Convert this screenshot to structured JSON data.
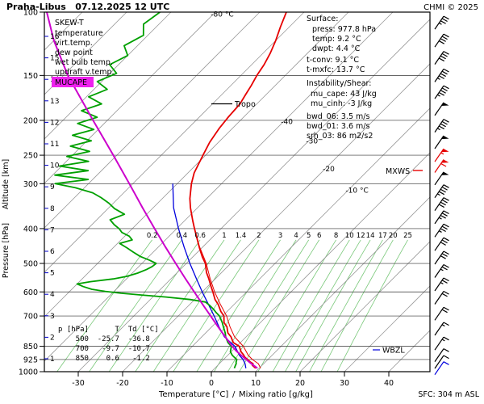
{
  "header": {
    "title": "Praha-Libus   07.12.2025 12 UTC",
    "copyright": "CHMI © 2025",
    "copyright_color": "#dd0000"
  },
  "legend": {
    "title": "SKEW-T",
    "items": [
      {
        "label": "temperature",
        "color": "#e60000"
      },
      {
        "label": "virt.temp.",
        "color": "#e60000"
      },
      {
        "label": "dew point",
        "color": "#00a000"
      },
      {
        "label": "wet bulb temp.",
        "color": "#0000dd"
      },
      {
        "label": "updraft v.temp.",
        "color": "#cc00cc"
      }
    ],
    "mucape": {
      "label": "MUCAPE",
      "bg": "#ee22ee"
    }
  },
  "info": {
    "surface_title": "Surface:",
    "rows": [
      {
        "text": "press: 977.8 hPa",
        "color": "#000000"
      },
      {
        "text": "temp: 9.2 °C",
        "color": "#e60000"
      },
      {
        "text": "dwpt: 4.4 °C",
        "color": "#00a000"
      },
      {
        "text": "t-conv: 9.1 °C",
        "color": "#000000"
      },
      {
        "text": "t-mxfc: 13.7 °C",
        "color": "#000000"
      }
    ],
    "shear_title": "Instability/Shear:",
    "shear_rows": [
      {
        "text": "mu_cape: 43 J/kg"
      },
      {
        "text": "mu_cinh: -3 J/kg"
      },
      {
        "text": "bwd_06: 3.5 m/s"
      },
      {
        "text": "bwd_01: 3.6 m/s"
      },
      {
        "text": "srh_03: 86 m2/s2"
      }
    ]
  },
  "markers": {
    "tropo": "Tropo",
    "mxws": "MXWS",
    "wbzl": "WBZL",
    "sfc": "SFC: 304 m ASL"
  },
  "table": {
    "header": "p [hPa]      T  Td [°C]",
    "rows": [
      "    500  -25.7  -36.8",
      "    700   -9.7  -10.7",
      "    850    0.6   -1.2"
    ]
  },
  "axes": {
    "pressure_ticks": [
      100,
      150,
      200,
      250,
      300,
      400,
      500,
      600,
      700,
      850,
      925,
      1000
    ],
    "altitude_ticks": [
      16,
      15,
      14,
      13,
      12,
      11,
      10,
      9,
      8,
      7,
      6,
      5,
      4,
      3,
      2,
      1
    ],
    "temp_ticks": [
      -30,
      -20,
      -10,
      0,
      10,
      20,
      30,
      40
    ],
    "xlabel_temp": "Temperature [°C]",
    "xlabel_sep": "/",
    "xlabel_mix": "Mixing ratio [g/kg]",
    "ylabel_pressure": "Pressure [hPa]",
    "ylabel_altitude": "Altitude [km]"
  },
  "chart_data": {
    "type": "line",
    "subtype": "skew-t-log-p-sounding",
    "title": "SKEW-T sounding Praha-Libus 07.12.2025 12 UTC",
    "pressure_axis_hpa": [
      100,
      1000
    ],
    "temp_axis_c_at_surface": [
      -30,
      40
    ],
    "isotherm_step_c": 10,
    "grid": true,
    "tropopause_hpa": 180,
    "isotherm_labels": [
      {
        "t": -80,
        "p": 103,
        "text": "-80 °C"
      },
      {
        "t": -40,
        "p": 205,
        "text": "-40"
      },
      {
        "t": -30,
        "p": 232,
        "text": "-30"
      },
      {
        "t": -20,
        "p": 277,
        "text": "-20"
      },
      {
        "t": -10,
        "p": 318,
        "text": "-10 °C"
      }
    ],
    "mixing_ratio_gkg": [
      0.2,
      0.4,
      0.6,
      1,
      1.4,
      2,
      3,
      4,
      5,
      6,
      8,
      10,
      12,
      14,
      17,
      20,
      25
    ],
    "series": [
      {
        "name": "wet_bulb",
        "color": "#0000dd",
        "points": [
          [
            977.8,
            7.0
          ],
          [
            950,
            5.8
          ],
          [
            925,
            4.4
          ],
          [
            900,
            2.6
          ],
          [
            850,
            -0.4
          ],
          [
            800,
            -4.9
          ],
          [
            750,
            -8.4
          ],
          [
            700,
            -11.9
          ],
          [
            650,
            -15.8
          ],
          [
            600,
            -20.0
          ],
          [
            550,
            -24.4
          ],
          [
            500,
            -29.2
          ],
          [
            450,
            -34.2
          ],
          [
            400,
            -39.6
          ],
          [
            350,
            -45.4
          ],
          [
            300,
            -51.0
          ]
        ]
      },
      {
        "name": "virt_temp",
        "color": "#e60000",
        "points": [
          [
            977.8,
            10.3
          ],
          [
            950,
            8.8
          ],
          [
            925,
            6.5
          ],
          [
            900,
            4.6
          ],
          [
            850,
            1.5
          ],
          [
            800,
            -2.6
          ],
          [
            750,
            -5.9
          ],
          [
            700,
            -9.1
          ],
          [
            650,
            -13.1
          ],
          [
            600,
            -17.2
          ],
          [
            550,
            -21.3
          ],
          [
            500,
            -25.5
          ],
          [
            450,
            -30.7
          ],
          [
            400,
            -36.0
          ]
        ]
      },
      {
        "name": "dew_point",
        "color": "#00a000",
        "points": [
          [
            977.8,
            4.4
          ],
          [
            960,
            4.0
          ],
          [
            950,
            3.8
          ],
          [
            940,
            3.4
          ],
          [
            925,
            3.0
          ],
          [
            910,
            1.8
          ],
          [
            900,
            1.0
          ],
          [
            880,
            -0.2
          ],
          [
            850,
            -1.2
          ],
          [
            830,
            -2.8
          ],
          [
            800,
            -4.6
          ],
          [
            780,
            -5.6
          ],
          [
            750,
            -7.4
          ],
          [
            730,
            -8.6
          ],
          [
            700,
            -10.7
          ],
          [
            685,
            -12.2
          ],
          [
            670,
            -13.6
          ],
          [
            655,
            -15.2
          ],
          [
            640,
            -17.0
          ],
          [
            630,
            -21.0
          ],
          [
            620,
            -27.0
          ],
          [
            612,
            -33.0
          ],
          [
            605,
            -38.0
          ],
          [
            598,
            -42.0
          ],
          [
            590,
            -45.5
          ],
          [
            580,
            -48.0
          ],
          [
            570,
            -50.0
          ],
          [
            562,
            -47.5
          ],
          [
            552,
            -43.0
          ],
          [
            543,
            -40.5
          ],
          [
            532,
            -38.8
          ],
          [
            520,
            -37.6
          ],
          [
            510,
            -37.0
          ],
          [
            500,
            -36.8
          ],
          [
            490,
            -39.0
          ],
          [
            478,
            -42.0
          ],
          [
            465,
            -44.5
          ],
          [
            452,
            -47.0
          ],
          [
            440,
            -49.5
          ],
          [
            430,
            -47.5
          ],
          [
            420,
            -49.0
          ],
          [
            410,
            -51.5
          ],
          [
            400,
            -53.0
          ],
          [
            390,
            -55.0
          ],
          [
            378,
            -57.0
          ],
          [
            365,
            -55.0
          ],
          [
            352,
            -58.5
          ],
          [
            340,
            -61.0
          ],
          [
            328,
            -64.0
          ],
          [
            318,
            -67.0
          ],
          [
            308,
            -72.0
          ],
          [
            300,
            -77.5
          ],
          [
            292,
            -71.0
          ],
          [
            284,
            -79.5
          ],
          [
            276,
            -73.0
          ],
          [
            268,
            -80.5
          ],
          [
            260,
            -75.0
          ],
          [
            252,
            -81.0
          ],
          [
            244,
            -77.0
          ],
          [
            236,
            -82.5
          ],
          [
            228,
            -79.0
          ],
          [
            220,
            -84.5
          ],
          [
            212,
            -81.0
          ],
          [
            204,
            -86.0
          ],
          [
            196,
            -83.0
          ],
          [
            188,
            -88.0
          ],
          [
            180,
            -85.0
          ],
          [
            172,
            -89.5
          ],
          [
            164,
            -87.0
          ],
          [
            156,
            -91.0
          ],
          [
            148,
            -88.5
          ],
          [
            140,
            -92.0
          ],
          [
            132,
            -90.0
          ],
          [
            124,
            -93.0
          ],
          [
            116,
            -91.0
          ],
          [
            108,
            -93.5
          ],
          [
            100,
            -92.5
          ]
        ]
      },
      {
        "name": "temperature",
        "color": "#e60000",
        "points": [
          [
            977.8,
            9.2
          ],
          [
            960,
            7.8
          ],
          [
            950,
            7.6
          ],
          [
            940,
            6.6
          ],
          [
            925,
            5.4
          ],
          [
            910,
            4.2
          ],
          [
            900,
            3.6
          ],
          [
            880,
            2.2
          ],
          [
            850,
            0.6
          ],
          [
            830,
            -1.6
          ],
          [
            800,
            -3.4
          ],
          [
            780,
            -5.0
          ],
          [
            750,
            -6.6
          ],
          [
            730,
            -8.2
          ],
          [
            700,
            -9.7
          ],
          [
            680,
            -11.4
          ],
          [
            650,
            -13.6
          ],
          [
            630,
            -15.4
          ],
          [
            600,
            -17.6
          ],
          [
            580,
            -19.2
          ],
          [
            550,
            -21.6
          ],
          [
            530,
            -23.4
          ],
          [
            500,
            -25.7
          ],
          [
            480,
            -27.8
          ],
          [
            450,
            -30.8
          ],
          [
            430,
            -32.8
          ],
          [
            400,
            -36.0
          ],
          [
            380,
            -38.2
          ],
          [
            350,
            -41.6
          ],
          [
            330,
            -43.8
          ],
          [
            300,
            -46.8
          ],
          [
            280,
            -48.6
          ],
          [
            250,
            -50.6
          ],
          [
            230,
            -52.0
          ],
          [
            210,
            -53.0
          ],
          [
            195,
            -53.5
          ],
          [
            180,
            -53.8
          ],
          [
            170,
            -54.6
          ],
          [
            160,
            -55.4
          ],
          [
            150,
            -56.4
          ],
          [
            140,
            -57.2
          ],
          [
            130,
            -58.4
          ],
          [
            120,
            -60.0
          ],
          [
            110,
            -62.0
          ],
          [
            100,
            -64.0
          ]
        ]
      },
      {
        "name": "updraft_virt_temp",
        "color": "#cc00cc",
        "points": [
          [
            977.8,
            9.6
          ],
          [
            950,
            7.2
          ],
          [
            925,
            5.1
          ],
          [
            900,
            3.0
          ],
          [
            875,
            0.9
          ],
          [
            850,
            -1.0
          ],
          [
            800,
            -4.7
          ],
          [
            750,
            -8.6
          ],
          [
            700,
            -12.7
          ],
          [
            650,
            -17.1
          ],
          [
            600,
            -21.8
          ],
          [
            550,
            -26.9
          ],
          [
            500,
            -32.4
          ],
          [
            450,
            -38.4
          ],
          [
            400,
            -45.0
          ],
          [
            350,
            -52.4
          ],
          [
            300,
            -60.8
          ],
          [
            250,
            -70.8
          ],
          [
            200,
            -83.2
          ],
          [
            150,
            -99.0
          ],
          [
            120,
            -110.0
          ],
          [
            100,
            -118.0
          ]
        ]
      }
    ],
    "wind_barbs": [
      {
        "p": 107,
        "kt": 35
      },
      {
        "p": 120,
        "kt": 40
      },
      {
        "p": 134,
        "kt": 40
      },
      {
        "p": 150,
        "kt": 45
      },
      {
        "p": 167,
        "kt": 45
      },
      {
        "p": 186,
        "kt": 50
      },
      {
        "p": 207,
        "kt": 45
      },
      {
        "p": 230,
        "kt": 50
      },
      {
        "p": 250,
        "kt": 55,
        "color": "#e60000"
      },
      {
        "p": 268,
        "kt": 60,
        "color": "#e60000"
      },
      {
        "p": 290,
        "kt": 50
      },
      {
        "p": 315,
        "kt": 45
      },
      {
        "p": 342,
        "kt": 40
      },
      {
        "p": 372,
        "kt": 35
      },
      {
        "p": 405,
        "kt": 35
      },
      {
        "p": 442,
        "kt": 30
      },
      {
        "p": 482,
        "kt": 30
      },
      {
        "p": 525,
        "kt": 25
      },
      {
        "p": 572,
        "kt": 25
      },
      {
        "p": 623,
        "kt": 20
      },
      {
        "p": 690,
        "kt": 20
      },
      {
        "p": 760,
        "kt": 15
      },
      {
        "p": 835,
        "kt": 15
      },
      {
        "p": 900,
        "kt": 10
      },
      {
        "p": 940,
        "kt": 10
      },
      {
        "p": 977.8,
        "kt": 10,
        "color": "#0000dd"
      }
    ]
  }
}
